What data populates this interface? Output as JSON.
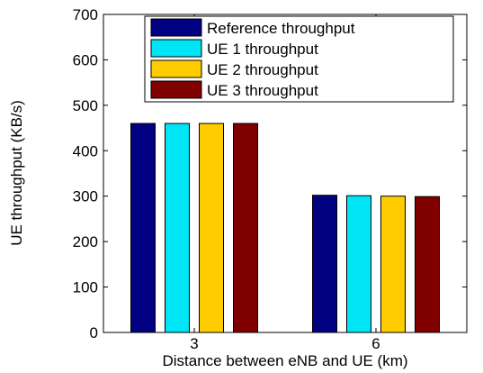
{
  "chart_data": {
    "type": "bar",
    "title": "",
    "xlabel": "Distance between eNB and UE (km)",
    "ylabel": "UE throughput (KB/s)",
    "categories": [
      "3",
      "6"
    ],
    "ylim": [
      0,
      700
    ],
    "yticks": [
      0,
      100,
      200,
      300,
      400,
      500,
      600,
      700
    ],
    "grid": false,
    "legend_position": "top-right",
    "series": [
      {
        "name": "Reference throughput",
        "color": "#000080",
        "values": [
          460,
          302
        ]
      },
      {
        "name": "UE 1 throughput",
        "color": "#00e5f5",
        "values": [
          460,
          301
        ]
      },
      {
        "name": "UE 2 throughput",
        "color": "#ffcc00",
        "values": [
          460,
          300
        ]
      },
      {
        "name": "UE 3 throughput",
        "color": "#800000",
        "values": [
          460,
          299
        ]
      }
    ]
  }
}
